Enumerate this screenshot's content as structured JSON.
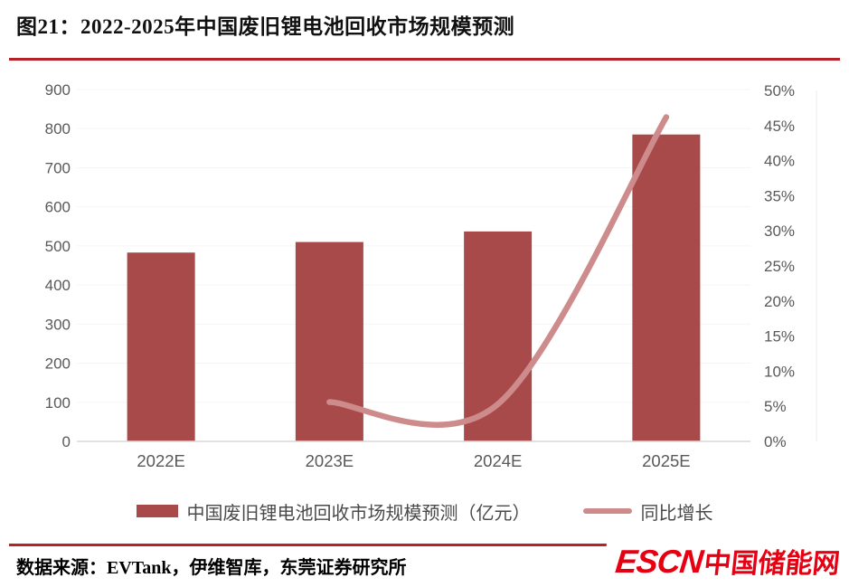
{
  "figure": {
    "title": "图21：2022-2025年中国废旧锂电池回收市场规模预测",
    "source": "数据来源：EVTank，伊维智库，东莞证券研究所"
  },
  "logo": {
    "latin": "ESCN",
    "cn": "中国储能网"
  },
  "colors": {
    "bar": "#A94A4A",
    "line": "#CE8B8B",
    "rule": "#B42328",
    "logo": "#E60012",
    "axis_text": "#595959",
    "baseline": "#D9D9D9",
    "gridline": "#F5F5F5",
    "frame": "#EBEBEB"
  },
  "chart_data": {
    "type": "bar",
    "subtype": "bar+line combo, dual axis",
    "title": "2022-2025年中国废旧锂电池回收市场规模预测",
    "categories": [
      "2022E",
      "2023E",
      "2024E",
      "2025E"
    ],
    "series": [
      {
        "name": "中国废旧锂电池回收市场规模预测（亿元）",
        "type": "bar",
        "axis": "left",
        "values": [
          483,
          510,
          537,
          785
        ]
      },
      {
        "name": "同比增长",
        "type": "line",
        "axis": "right",
        "unit": "%",
        "values": [
          null,
          5.6,
          5.3,
          46.2
        ]
      }
    ],
    "left_axis": {
      "min": 0,
      "max": 900,
      "step": 100,
      "ticks": [
        "900",
        "800",
        "700",
        "600",
        "500",
        "400",
        "300",
        "200",
        "100",
        "0"
      ]
    },
    "right_axis": {
      "min": 0,
      "max": 50,
      "step": 5,
      "ticks": [
        "50%",
        "45%",
        "40%",
        "35%",
        "30%",
        "25%",
        "20%",
        "15%",
        "10%",
        "5%",
        "0%"
      ]
    },
    "legend_position": "bottom",
    "grid": "faint horizontal gridlines, light gray baseline"
  }
}
